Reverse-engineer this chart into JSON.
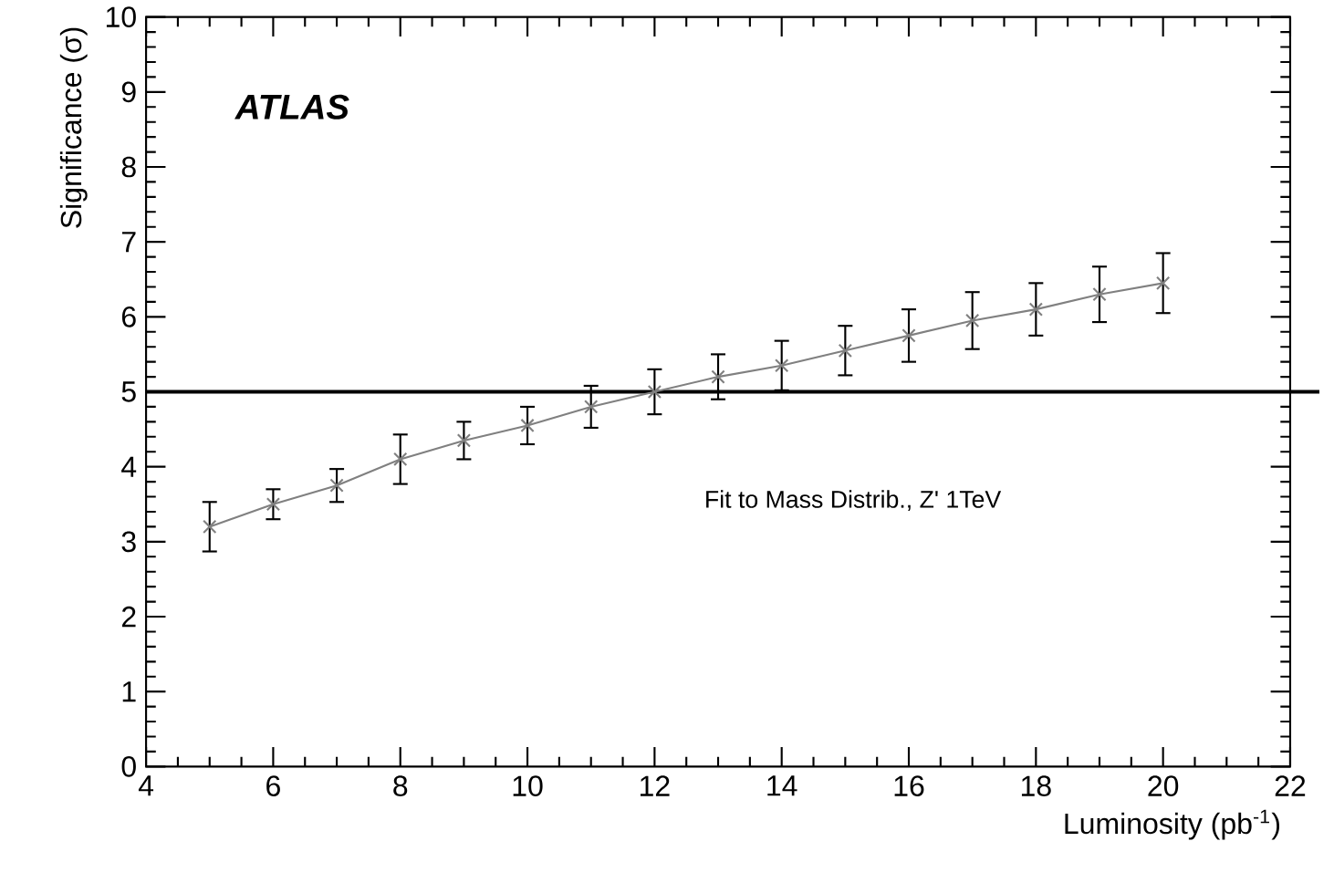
{
  "chart_data": {
    "type": "line",
    "xlabel": "Luminosity (pb$^{-1}$)",
    "ylabel": "Significance  (σ)",
    "annotations": [
      "ATLAS",
      "Fit to Mass Distrib., Z' 1TeV"
    ],
    "x": [
      5,
      6,
      7,
      8,
      9,
      10,
      11,
      12,
      13,
      14,
      15,
      16,
      17,
      18,
      19,
      20
    ],
    "series": [
      {
        "color": "#808080",
        "values": [
          3.2,
          3.5,
          3.75,
          4.1,
          4.35,
          4.55,
          4.8,
          5.0,
          5.2,
          5.35,
          5.55,
          5.75,
          5.95,
          6.1,
          6.3,
          6.45
        ],
        "errors": [
          0.33,
          0.2,
          0.22,
          0.33,
          0.25,
          0.25,
          0.28,
          0.3,
          0.3,
          0.33,
          0.33,
          0.35,
          0.38,
          0.35,
          0.37,
          0.4
        ]
      }
    ],
    "marker": "cross",
    "line_style": "solid",
    "xlim": [
      4,
      22
    ],
    "xticks": [
      4,
      6,
      8,
      10,
      12,
      14,
      16,
      18,
      20,
      22
    ],
    "ylim": [
      0,
      10
    ],
    "yticks": [
      0,
      1,
      2,
      3,
      4,
      5,
      6,
      7,
      8,
      9,
      10
    ],
    "ref_lines": [
      {
        "axis": "y",
        "value": 5,
        "color": "#000000"
      }
    ],
    "grid": false
  }
}
